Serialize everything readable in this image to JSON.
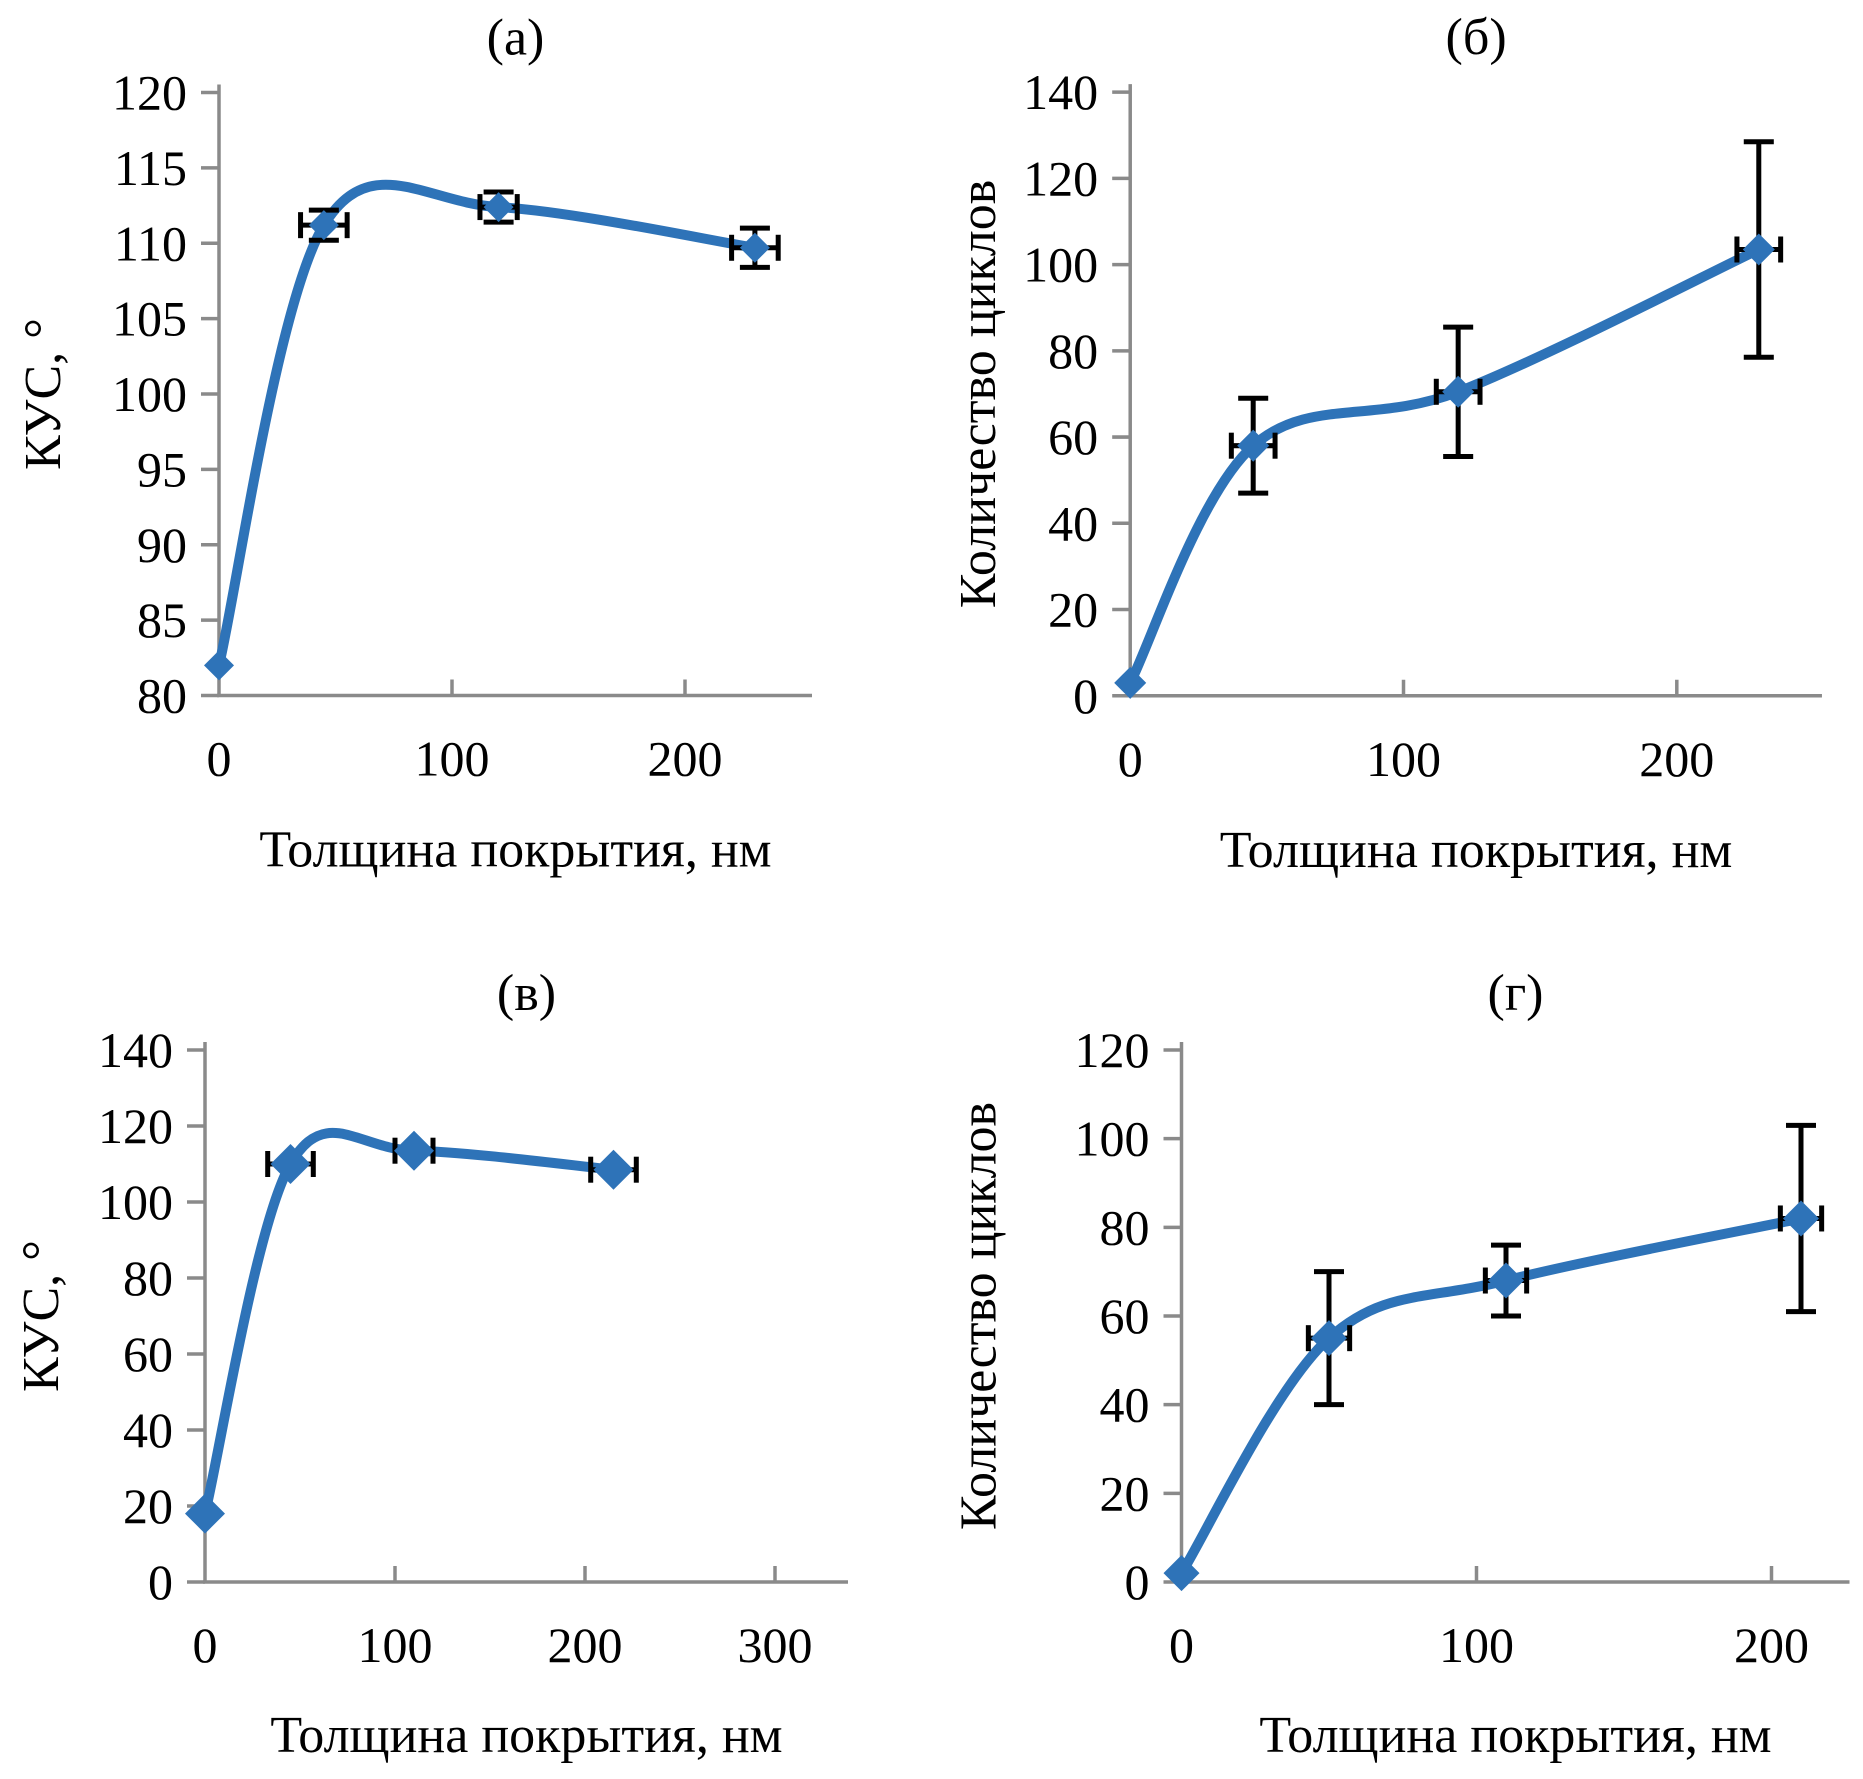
{
  "colors": {
    "line": "#2e73b8",
    "marker": "#2e73b8",
    "error_bar": "#000000",
    "axis": "#8a8a8a",
    "text": "#000000",
    "background": "#ffffff"
  },
  "chart_data": [
    {
      "id": "a",
      "type": "line",
      "title": "(а)",
      "xlabel": "Толщина покрытия, нм",
      "ylabel": "КУС, °",
      "x_ticks": [
        0,
        100,
        200
      ],
      "ylim": [
        80,
        120
      ],
      "y_step": 5,
      "grid": false,
      "legend": "none",
      "points": [
        {
          "x": 0,
          "y": 82
        },
        {
          "x": 45,
          "y": 111.2,
          "x_err": 10,
          "y_err": 1
        },
        {
          "x": 120,
          "y": 112.4,
          "x_err": 8,
          "y_err": 1
        },
        {
          "x": 230,
          "y": 109.7,
          "x_err": 10,
          "y_err": 1.3
        }
      ]
    },
    {
      "id": "b",
      "type": "line",
      "title": "(б)",
      "xlabel": "Толщина покрытия, нм",
      "ylabel": "Количество циклов",
      "x_ticks": [
        0,
        100,
        200
      ],
      "ylim": [
        0,
        140
      ],
      "y_step": 20,
      "grid": false,
      "legend": "none",
      "points": [
        {
          "x": 0,
          "y": 3
        },
        {
          "x": 45,
          "y": 58,
          "x_err": 8,
          "y_err": 11
        },
        {
          "x": 120,
          "y": 70.5,
          "x_err": 8,
          "y_err": 15
        },
        {
          "x": 230,
          "y": 103.5,
          "x_err": 8,
          "y_err": 25
        }
      ]
    },
    {
      "id": "v",
      "type": "line",
      "title": "(в)",
      "xlabel": "Толщина покрытия, нм",
      "ylabel": "КУС, °",
      "x_ticks": [
        0,
        100,
        200,
        300
      ],
      "ylim": [
        0,
        140
      ],
      "y_step": 20,
      "grid": false,
      "legend": "none",
      "points": [
        {
          "x": 0,
          "y": 18
        },
        {
          "x": 45,
          "y": 110,
          "x_err": 12
        },
        {
          "x": 110,
          "y": 113.5,
          "x_err": 10
        },
        {
          "x": 215,
          "y": 108.5,
          "x_err": 12
        }
      ]
    },
    {
      "id": "g",
      "type": "line",
      "title": "(г)",
      "xlabel": "Толщина покрытия, нм",
      "ylabel": "Количество циклов",
      "x_ticks": [
        0,
        100,
        200
      ],
      "ylim": [
        0,
        120
      ],
      "y_step": 20,
      "grid": false,
      "legend": "none",
      "points": [
        {
          "x": 0,
          "y": 2
        },
        {
          "x": 50,
          "y": 55,
          "x_err": 7,
          "y_err": 15
        },
        {
          "x": 110,
          "y": 68,
          "x_err": 7,
          "y_err": 8
        },
        {
          "x": 210,
          "y": 82,
          "x_err": 7,
          "y_err": 21
        }
      ]
    }
  ]
}
